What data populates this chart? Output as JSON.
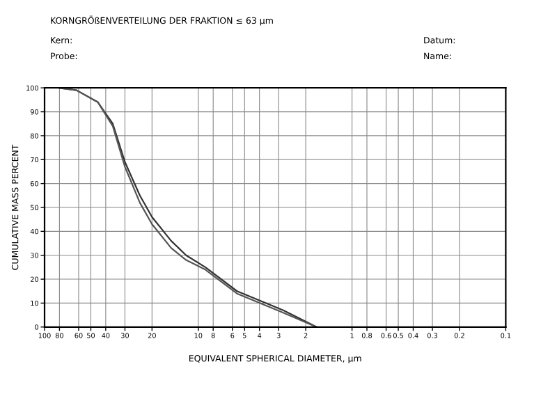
{
  "chart_data": {
    "type": "line",
    "title": "KORNGRÖßENVERTEILUNG DER FRAKTION ≤ 63 µm",
    "xlabel": "EQUIVALENT SPHERICAL DIAMETER, µm",
    "ylabel": "CUMULATIVE MASS PERCENT",
    "annotations": [
      "Kern:",
      "Probe:",
      "Datum:",
      "Name:"
    ],
    "log": "x",
    "grid": true,
    "legend": false,
    "marker": "none",
    "line_style": "solid",
    "xlim": [
      100,
      0.1
    ],
    "ylim": [
      0,
      100
    ],
    "xticks": [
      100,
      80,
      60,
      50,
      40,
      30,
      20,
      10,
      8,
      6,
      5,
      4,
      3,
      2,
      1,
      0.8,
      0.6,
      0.5,
      0.4,
      0.3,
      0.2,
      0.1
    ],
    "yticks": [
      0,
      10,
      20,
      30,
      40,
      50,
      60,
      70,
      80,
      90,
      100
    ],
    "series": [
      {
        "color": "#333333",
        "x": [
          80,
          62,
          45,
          36,
          30,
          24,
          20,
          15,
          12,
          9,
          5.6,
          2.8,
          1.7
        ],
        "values": [
          100,
          99,
          94,
          85,
          69,
          55,
          46,
          36,
          30,
          25,
          15,
          7,
          0
        ]
      },
      {
        "color": "#555555",
        "x": [
          80,
          62,
          45,
          36,
          30,
          24,
          20,
          15,
          12,
          9,
          5.6,
          2.8,
          1.7
        ],
        "values": [
          100,
          99,
          94,
          84,
          67,
          52,
          43,
          33,
          28,
          24,
          14,
          6,
          0
        ]
      }
    ]
  }
}
